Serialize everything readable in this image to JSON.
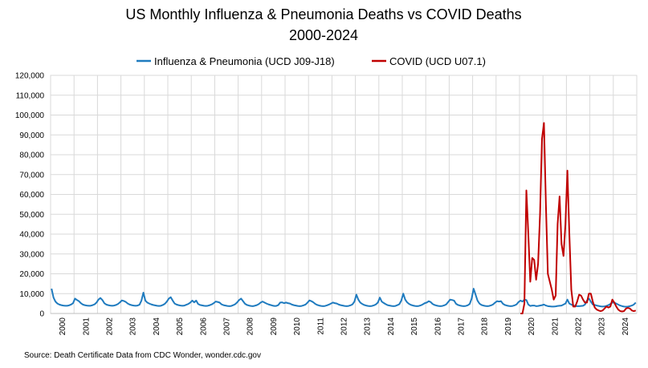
{
  "chart_data": {
    "type": "line",
    "title": "US Monthly Influenza & Pneumonia Deaths vs COVID Deaths",
    "subtitle": "2000-2024",
    "source": "Source: Death Certificate Data from CDC Wonder, wonder.cdc.gov",
    "categories": [
      "2000",
      null,
      null,
      null,
      null,
      null,
      null,
      null,
      null,
      null,
      null,
      null,
      "2001",
      null,
      null,
      null,
      null,
      null,
      null,
      null,
      null,
      null,
      null,
      null,
      "2002",
      null,
      null,
      null,
      null,
      null,
      null,
      null,
      null,
      null,
      null,
      null,
      "2003",
      null,
      null,
      null,
      null,
      null,
      null,
      null,
      null,
      null,
      null,
      null,
      "2004",
      null,
      null,
      null,
      null,
      null,
      null,
      null,
      null,
      null,
      null,
      null,
      "2005",
      null,
      null,
      null,
      null,
      null,
      null,
      null,
      null,
      null,
      null,
      null,
      "2006",
      null,
      null,
      null,
      null,
      null,
      null,
      null,
      null,
      null,
      null,
      null,
      "2007",
      null,
      null,
      null,
      null,
      null,
      null,
      null,
      null,
      null,
      null,
      null,
      "2008",
      null,
      null,
      null,
      null,
      null,
      null,
      null,
      null,
      null,
      null,
      null,
      "2009",
      null,
      null,
      null,
      null,
      null,
      null,
      null,
      null,
      null,
      null,
      null,
      "2010",
      null,
      null,
      null,
      null,
      null,
      null,
      null,
      null,
      null,
      null,
      null,
      "2011",
      null,
      null,
      null,
      null,
      null,
      null,
      null,
      null,
      null,
      null,
      null,
      "2012",
      null,
      null,
      null,
      null,
      null,
      null,
      null,
      null,
      null,
      null,
      null,
      "2013",
      null,
      null,
      null,
      null,
      null,
      null,
      null,
      null,
      null,
      null,
      null,
      "2014",
      null,
      null,
      null,
      null,
      null,
      null,
      null,
      null,
      null,
      null,
      null,
      "2015",
      null,
      null,
      null,
      null,
      null,
      null,
      null,
      null,
      null,
      null,
      null,
      "2016",
      null,
      null,
      null,
      null,
      null,
      null,
      null,
      null,
      null,
      null,
      null,
      "2017",
      null,
      null,
      null,
      null,
      null,
      null,
      null,
      null,
      null,
      null,
      null,
      "2018",
      null,
      null,
      null,
      null,
      null,
      null,
      null,
      null,
      null,
      null,
      null,
      "2019",
      null,
      null,
      null,
      null,
      null,
      null,
      null,
      null,
      null,
      null,
      null,
      "2020",
      null,
      null,
      null,
      null,
      null,
      null,
      null,
      null,
      null,
      null,
      null,
      "2021",
      null,
      null,
      null,
      null,
      null,
      null,
      null,
      null,
      null,
      null,
      null,
      "2022",
      null,
      null,
      null,
      null,
      null,
      null,
      null,
      null,
      null,
      null,
      null,
      "2023",
      null,
      null,
      null,
      null,
      null,
      null,
      null,
      null,
      null,
      null,
      null,
      "2024",
      null,
      null,
      null,
      null,
      null,
      null,
      null,
      null,
      null,
      null,
      null
    ],
    "series": [
      {
        "name": "Influenza & Pneumonia (UCD J09-J18)",
        "color": "#1f7bbf",
        "values": [
          12500,
          8000,
          6000,
          5000,
          4500,
          4200,
          4000,
          3900,
          3900,
          4100,
          4500,
          5200,
          7500,
          6800,
          6200,
          5200,
          4500,
          4200,
          4000,
          3900,
          3900,
          4200,
          4600,
          5500,
          7000,
          7800,
          6800,
          5200,
          4500,
          4200,
          4000,
          3900,
          4000,
          4300,
          4800,
          5600,
          6600,
          6300,
          5800,
          5000,
          4500,
          4200,
          4000,
          3900,
          4000,
          4400,
          6500,
          10500,
          6500,
          5500,
          5000,
          4600,
          4300,
          4100,
          3900,
          3800,
          3900,
          4300,
          4900,
          6000,
          7500,
          8200,
          6500,
          5000,
          4500,
          4200,
          4000,
          3900,
          4000,
          4400,
          4800,
          5500,
          6500,
          5600,
          6500,
          4800,
          4300,
          4100,
          3900,
          3800,
          3900,
          4200,
          4600,
          5200,
          6000,
          5800,
          5500,
          4600,
          4200,
          4000,
          3800,
          3700,
          3800,
          4200,
          4700,
          5600,
          6800,
          7500,
          6200,
          4900,
          4300,
          4000,
          3800,
          3700,
          3900,
          4200,
          4700,
          5500,
          6000,
          5500,
          5000,
          4600,
          4300,
          4000,
          3800,
          3800,
          4200,
          5500,
          5600,
          5200,
          5500,
          5200,
          5000,
          4500,
          4200,
          4000,
          3800,
          3700,
          3800,
          4100,
          4500,
          5500,
          6600,
          6200,
          5600,
          4800,
          4300,
          4000,
          3800,
          3700,
          3800,
          4100,
          4500,
          5000,
          5500,
          5200,
          5000,
          4500,
          4200,
          4000,
          3800,
          3700,
          3800,
          4100,
          4600,
          6000,
          9500,
          7000,
          5500,
          4800,
          4300,
          4000,
          3800,
          3700,
          3800,
          4100,
          4600,
          5500,
          8000,
          6000,
          5300,
          4700,
          4200,
          4000,
          3800,
          3700,
          3800,
          4200,
          4700,
          6500,
          10000,
          7000,
          5600,
          4800,
          4300,
          4000,
          3800,
          3700,
          3800,
          4100,
          4600,
          5200,
          5500,
          6200,
          5800,
          4800,
          4300,
          4000,
          3800,
          3700,
          3800,
          4100,
          4600,
          5800,
          7000,
          6800,
          6500,
          4900,
          4300,
          4000,
          3800,
          3700,
          3800,
          4100,
          4800,
          7500,
          12500,
          9500,
          6500,
          5000,
          4300,
          4000,
          3800,
          3700,
          3800,
          4100,
          4600,
          5500,
          6200,
          6000,
          6200,
          4900,
          4300,
          4000,
          3800,
          3700,
          3800,
          4100,
          4600,
          5800,
          6500,
          6000,
          7000,
          6800,
          4500,
          3800,
          4000,
          4000,
          3700,
          3800,
          4000,
          4200,
          4500,
          4000,
          3700,
          3600,
          3500,
          3500,
          3600,
          3800,
          3900,
          4000,
          4500,
          5000,
          7000,
          5000,
          4500,
          4000,
          3800,
          3700,
          3700,
          3800,
          3900,
          4500,
          6500,
          7500,
          6000,
          4500,
          4300,
          4000,
          3800,
          3600,
          3500,
          3600,
          3800,
          4200,
          4800,
          5500,
          5500,
          5000,
          4500,
          4000,
          3700,
          3500,
          3400,
          3500,
          3700,
          4000,
          4500,
          5500
        ]
      },
      {
        "name": "COVID (UCD U07.1)",
        "color": "#c00000",
        "values": [
          null,
          null,
          null,
          null,
          null,
          null,
          null,
          null,
          null,
          null,
          null,
          null,
          null,
          null,
          null,
          null,
          null,
          null,
          null,
          null,
          null,
          null,
          null,
          null,
          null,
          null,
          null,
          null,
          null,
          null,
          null,
          null,
          null,
          null,
          null,
          null,
          null,
          null,
          null,
          null,
          null,
          null,
          null,
          null,
          null,
          null,
          null,
          null,
          null,
          null,
          null,
          null,
          null,
          null,
          null,
          null,
          null,
          null,
          null,
          null,
          null,
          null,
          null,
          null,
          null,
          null,
          null,
          null,
          null,
          null,
          null,
          null,
          null,
          null,
          null,
          null,
          null,
          null,
          null,
          null,
          null,
          null,
          null,
          null,
          null,
          null,
          null,
          null,
          null,
          null,
          null,
          null,
          null,
          null,
          null,
          null,
          null,
          null,
          null,
          null,
          null,
          null,
          null,
          null,
          null,
          null,
          null,
          null,
          null,
          null,
          null,
          null,
          null,
          null,
          null,
          null,
          null,
          null,
          null,
          null,
          null,
          null,
          null,
          null,
          null,
          null,
          null,
          null,
          null,
          null,
          null,
          null,
          null,
          null,
          null,
          null,
          null,
          null,
          null,
          null,
          null,
          null,
          null,
          null,
          null,
          null,
          null,
          null,
          null,
          null,
          null,
          null,
          null,
          null,
          null,
          null,
          null,
          null,
          null,
          null,
          null,
          null,
          null,
          null,
          null,
          null,
          null,
          null,
          null,
          null,
          null,
          null,
          null,
          null,
          null,
          null,
          null,
          null,
          null,
          null,
          null,
          null,
          null,
          null,
          null,
          null,
          null,
          null,
          null,
          null,
          null,
          null,
          null,
          null,
          null,
          null,
          null,
          null,
          null,
          null,
          null,
          null,
          null,
          null,
          null,
          null,
          null,
          null,
          null,
          null,
          null,
          null,
          null,
          null,
          null,
          null,
          null,
          null,
          null,
          null,
          null,
          null,
          null,
          null,
          null,
          null,
          null,
          null,
          null,
          null,
          null,
          null,
          null,
          null,
          null,
          null,
          null,
          null,
          null,
          null,
          0,
          0,
          5000,
          62000,
          40000,
          16000,
          28000,
          27000,
          17000,
          25000,
          50000,
          88000,
          96000,
          55000,
          20000,
          16000,
          12000,
          7000,
          9000,
          45000,
          59000,
          35000,
          29000,
          45000,
          72000,
          40000,
          12000,
          3500,
          3500,
          6000,
          9500,
          9000,
          7000,
          5500,
          5500,
          10000,
          10000,
          6000,
          3000,
          2000,
          1500,
          1200,
          1500,
          2500,
          3500,
          3000,
          3500,
          7000,
          5500,
          3500,
          2000,
          1200,
          1000,
          1200,
          2500,
          2800,
          2500,
          1500,
          1200,
          1500
        ]
      }
    ],
    "ylim": [
      0,
      120000
    ],
    "yticks": [
      {
        "value": 0,
        "label": "0"
      },
      {
        "value": 10000,
        "label": "10,000"
      },
      {
        "value": 20000,
        "label": "20,000"
      },
      {
        "value": 30000,
        "label": "30,000"
      },
      {
        "value": 40000,
        "label": "40,000"
      },
      {
        "value": 50000,
        "label": "50,000"
      },
      {
        "value": 60000,
        "label": "60,000"
      },
      {
        "value": 70000,
        "label": "70,000"
      },
      {
        "value": 80000,
        "label": "80,000"
      },
      {
        "value": 90000,
        "label": "90,000"
      },
      {
        "value": 100000,
        "label": "100,000"
      },
      {
        "value": 110000,
        "label": "110,000"
      },
      {
        "value": 120000,
        "label": "120,000"
      }
    ],
    "grid": true,
    "legend": "top"
  }
}
